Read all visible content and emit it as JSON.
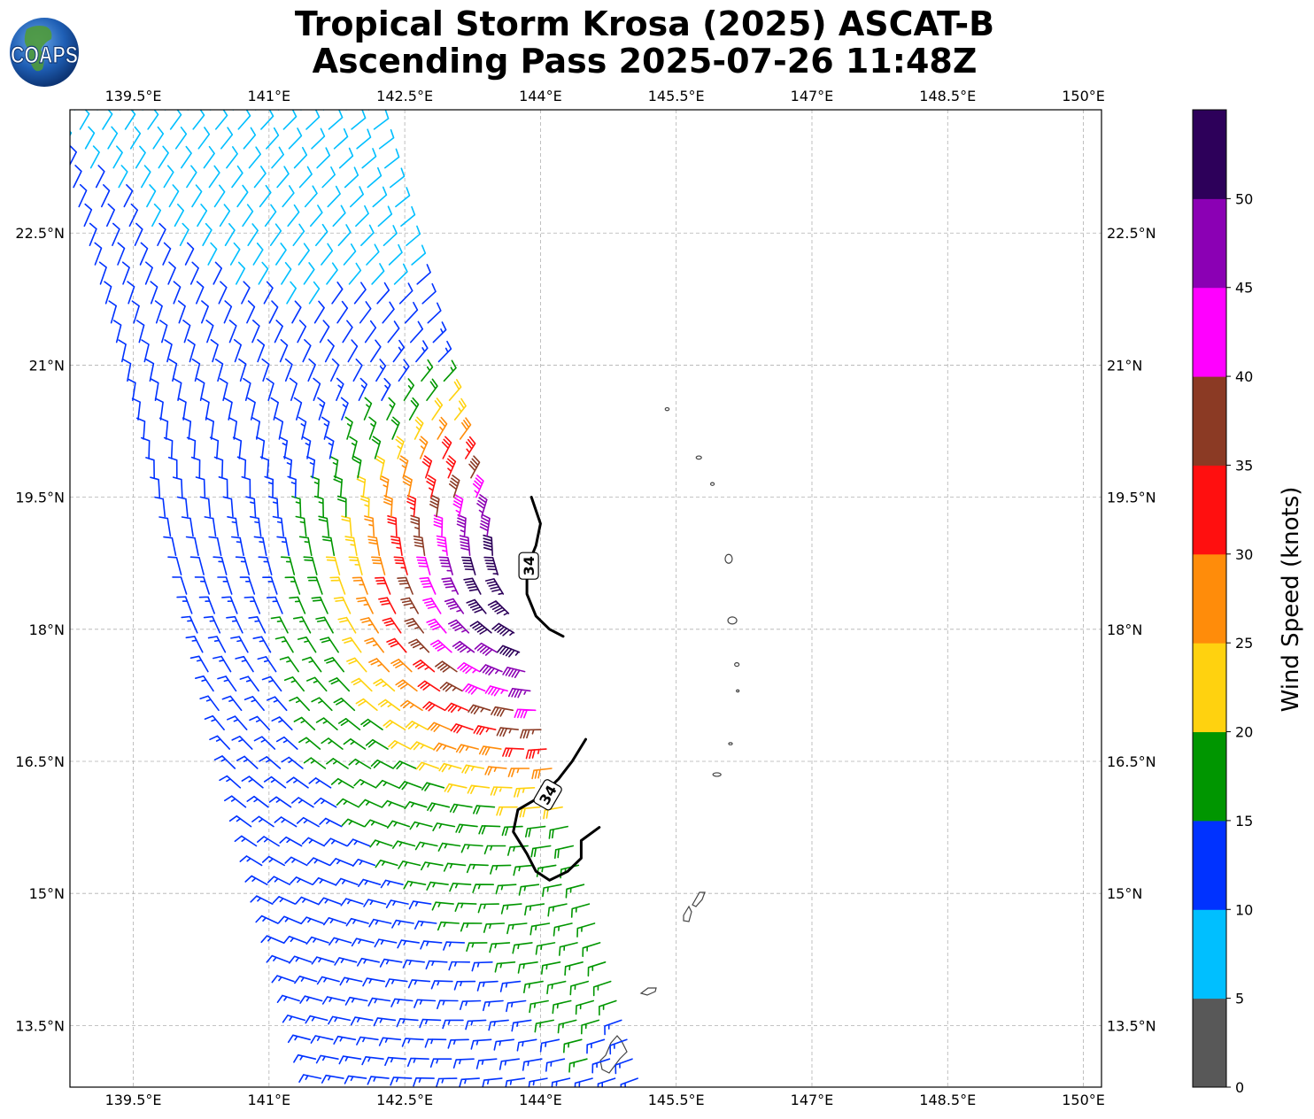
{
  "title_line1": "Tropical Storm Krosa (2025) ASCAT-B",
  "title_line2": "Ascending Pass 2025-07-26 11:48Z",
  "logo_text": "COAPS",
  "map": {
    "lon_range": [
      138.8,
      150.2
    ],
    "lat_range": [
      12.8,
      23.9
    ],
    "lon_ticks": [
      139.5,
      141,
      142.5,
      144,
      145.5,
      147,
      148.5,
      150
    ],
    "lon_tick_labels": [
      "139.5°E",
      "141°E",
      "142.5°E",
      "144°E",
      "145.5°E",
      "147°E",
      "148.5°E",
      "150°E"
    ],
    "lat_ticks": [
      22.5,
      21,
      19.5,
      18,
      16.5,
      15,
      13.5
    ],
    "lat_tick_labels": [
      "22.5°N",
      "21°N",
      "19.5°N",
      "18°N",
      "16.5°N",
      "15°N",
      "13.5°N"
    ],
    "gridlines": true,
    "center": {
      "lon": 144.45,
      "lat": 18.65
    },
    "contour_level_label": "34",
    "land_color": "#444444"
  },
  "colorbar": {
    "label": "Wind Speed (knots)",
    "bounds": [
      0,
      5,
      10,
      15,
      20,
      25,
      30,
      35,
      40,
      45,
      50,
      55
    ],
    "tick_values": [
      0,
      5,
      10,
      15,
      20,
      25,
      30,
      35,
      40,
      45,
      50
    ],
    "tick_labels": [
      "0",
      "5",
      "10",
      "15",
      "20",
      "25",
      "30",
      "35",
      "40",
      "45",
      "50"
    ],
    "colors": [
      "#585858",
      "#00bfff",
      "#0032ff",
      "#009600",
      "#ffd20f",
      "#ff8c0a",
      "#ff0f0f",
      "#8b3a24",
      "#ff00ff",
      "#8b00b4",
      "#2d005a"
    ]
  }
}
